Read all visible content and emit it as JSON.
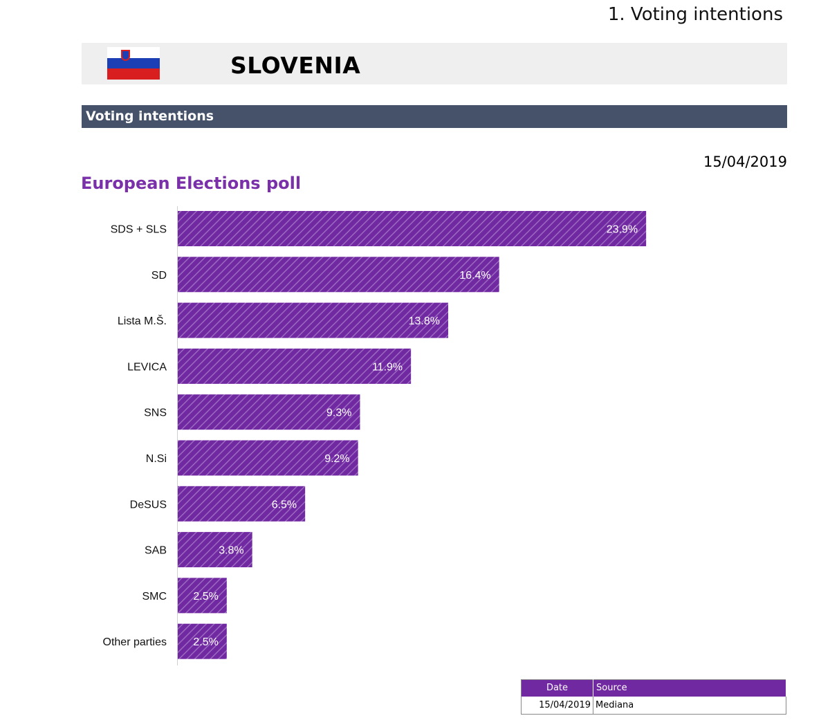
{
  "section_heading": "1. Voting intentions",
  "country": {
    "name": "SLOVENIA",
    "flag_icon": "slovenia-flag-icon",
    "flag_colors": [
      "#ffffff",
      "#1c3fb5",
      "#d81e1e"
    ]
  },
  "subsection": {
    "title": "Voting intentions",
    "bar_color": "#45526a"
  },
  "poll_date": "15/04/2019",
  "chart_data": {
    "type": "bar",
    "orientation": "horizontal",
    "title": "European Elections poll",
    "categories": [
      "SDS + SLS",
      "SD",
      "Lista M.Š.",
      "LEVICA",
      "SNS",
      "N.Si",
      "DeSUS",
      "SAB",
      "SMC",
      "Other parties"
    ],
    "values": [
      23.9,
      16.4,
      13.8,
      11.9,
      9.3,
      9.2,
      6.5,
      3.8,
      2.5,
      2.5
    ],
    "value_labels": [
      "23.9%",
      "16.4%",
      "13.8%",
      "11.9%",
      "9.3%",
      "9.2%",
      "6.5%",
      "3.8%",
      "2.5%",
      "2.5%"
    ],
    "unit": "%",
    "bar_color": "#7129a2",
    "bar_hatch_color": "#9b6ac0",
    "title_color": "#7a30a8",
    "grid": false,
    "legend": "none",
    "xlim": [
      0,
      30
    ]
  },
  "source_table": {
    "headers": [
      "Date",
      "Source"
    ],
    "rows": [
      [
        "15/04/2019",
        "Mediana"
      ]
    ],
    "header_color": "#7129a2"
  }
}
